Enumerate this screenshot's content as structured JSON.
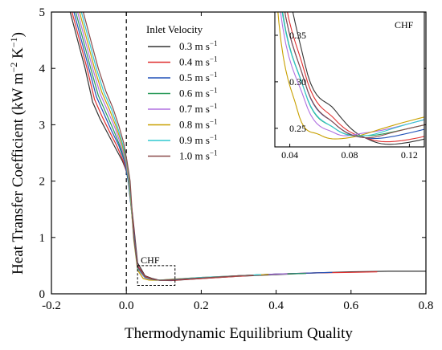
{
  "chart_data": {
    "type": "line",
    "xlabel": "Thermodynamic Equilibrium Quality",
    "ylabel": "Heat Transfer Coefficient (kW m⁻² K⁻¹)",
    "ylabel_parts": {
      "base": "Heat Transfer Coefficient (kW m",
      "sup1": "−2",
      "mid": " K",
      "sup2": "−1",
      "end": ")"
    },
    "xlim": [
      -0.2,
      0.8
    ],
    "ylim": [
      0,
      5
    ],
    "xticks": [
      "-0.2",
      "0.0",
      "0.2",
      "0.4",
      "0.6",
      "0.8"
    ],
    "yticks": [
      "0",
      "1",
      "2",
      "3",
      "4",
      "5"
    ],
    "legend_title": "Inlet Velocity",
    "legend_position": "top-center",
    "reference_line_x": 0.0,
    "annotation": "CHF",
    "series": [
      {
        "name": "0.3 m s",
        "unit_sup": "−1",
        "color": "#333333",
        "points": [
          [
            -0.15,
            5.0
          ],
          [
            -0.13,
            4.5
          ],
          [
            -0.11,
            4.0
          ],
          [
            -0.09,
            3.4
          ],
          [
            -0.07,
            3.1
          ],
          [
            -0.05,
            2.85
          ],
          [
            -0.03,
            2.6
          ],
          [
            -0.01,
            2.35
          ],
          [
            0.005,
            2.1
          ],
          [
            0.02,
            1.2
          ],
          [
            0.03,
            0.55
          ],
          [
            0.05,
            0.32
          ],
          [
            0.07,
            0.27
          ],
          [
            0.09,
            0.24
          ],
          [
            0.12,
            0.235
          ],
          [
            0.2,
            0.27
          ],
          [
            0.3,
            0.31
          ],
          [
            0.4,
            0.34
          ],
          [
            0.5,
            0.37
          ],
          [
            0.6,
            0.39
          ],
          [
            0.7,
            0.4
          ],
          [
            0.8,
            0.4
          ]
        ]
      },
      {
        "name": "0.4 m s",
        "unit_sup": "−1",
        "color": "#e03030",
        "points": [
          [
            -0.145,
            5.0
          ],
          [
            -0.125,
            4.5
          ],
          [
            -0.105,
            4.0
          ],
          [
            -0.085,
            3.45
          ],
          [
            -0.065,
            3.15
          ],
          [
            -0.045,
            2.88
          ],
          [
            -0.025,
            2.62
          ],
          [
            -0.008,
            2.35
          ],
          [
            0.005,
            2.05
          ],
          [
            0.02,
            1.15
          ],
          [
            0.03,
            0.5
          ],
          [
            0.05,
            0.31
          ],
          [
            0.07,
            0.26
          ],
          [
            0.09,
            0.24
          ],
          [
            0.12,
            0.238
          ],
          [
            0.2,
            0.27
          ],
          [
            0.3,
            0.31
          ],
          [
            0.4,
            0.35
          ],
          [
            0.5,
            0.37
          ],
          [
            0.6,
            0.38
          ],
          [
            0.67,
            0.39
          ]
        ]
      },
      {
        "name": "0.5 m s",
        "unit_sup": "−1",
        "color": "#2050b8",
        "points": [
          [
            -0.14,
            5.0
          ],
          [
            -0.12,
            4.5
          ],
          [
            -0.1,
            4.0
          ],
          [
            -0.08,
            3.5
          ],
          [
            -0.06,
            3.2
          ],
          [
            -0.04,
            2.9
          ],
          [
            -0.02,
            2.63
          ],
          [
            -0.005,
            2.35
          ],
          [
            0.005,
            2.0
          ],
          [
            0.02,
            1.1
          ],
          [
            0.03,
            0.48
          ],
          [
            0.05,
            0.3
          ],
          [
            0.07,
            0.255
          ],
          [
            0.09,
            0.24
          ],
          [
            0.12,
            0.245
          ],
          [
            0.2,
            0.28
          ],
          [
            0.3,
            0.32
          ],
          [
            0.4,
            0.35
          ],
          [
            0.5,
            0.37
          ],
          [
            0.55,
            0.38
          ]
        ]
      },
      {
        "name": "0.6 m s",
        "unit_sup": "−1",
        "color": "#2a9a5a",
        "points": [
          [
            -0.135,
            5.0
          ],
          [
            -0.115,
            4.5
          ],
          [
            -0.095,
            4.0
          ],
          [
            -0.075,
            3.52
          ],
          [
            -0.055,
            3.22
          ],
          [
            -0.035,
            2.92
          ],
          [
            -0.018,
            2.64
          ],
          [
            -0.003,
            2.35
          ],
          [
            0.006,
            2.0
          ],
          [
            0.02,
            1.05
          ],
          [
            0.03,
            0.46
          ],
          [
            0.05,
            0.29
          ],
          [
            0.07,
            0.25
          ],
          [
            0.09,
            0.242
          ],
          [
            0.12,
            0.25
          ],
          [
            0.2,
            0.28
          ],
          [
            0.3,
            0.32
          ],
          [
            0.4,
            0.35
          ],
          [
            0.48,
            0.36
          ]
        ]
      },
      {
        "name": "0.7 m s",
        "unit_sup": "−1",
        "color": "#b070e0",
        "points": [
          [
            -0.13,
            5.0
          ],
          [
            -0.11,
            4.5
          ],
          [
            -0.09,
            4.0
          ],
          [
            -0.07,
            3.55
          ],
          [
            -0.05,
            3.25
          ],
          [
            -0.03,
            2.94
          ],
          [
            -0.015,
            2.65
          ],
          [
            -0.002,
            2.35
          ],
          [
            0.007,
            2.0
          ],
          [
            0.02,
            1.0
          ],
          [
            0.03,
            0.44
          ],
          [
            0.05,
            0.28
          ],
          [
            0.07,
            0.245
          ],
          [
            0.09,
            0.245
          ],
          [
            0.12,
            0.255
          ],
          [
            0.2,
            0.29
          ],
          [
            0.3,
            0.32
          ],
          [
            0.4,
            0.35
          ],
          [
            0.43,
            0.355
          ]
        ]
      },
      {
        "name": "0.8 m s",
        "unit_sup": "−1",
        "color": "#c8a000",
        "points": [
          [
            -0.125,
            5.0
          ],
          [
            -0.105,
            4.5
          ],
          [
            -0.085,
            4.0
          ],
          [
            -0.065,
            3.57
          ],
          [
            -0.045,
            3.27
          ],
          [
            -0.027,
            2.96
          ],
          [
            -0.012,
            2.66
          ],
          [
            0.0,
            2.35
          ],
          [
            0.008,
            2.0
          ],
          [
            0.02,
            0.95
          ],
          [
            0.03,
            0.42
          ],
          [
            0.045,
            0.27
          ],
          [
            0.06,
            0.243
          ],
          [
            0.08,
            0.24
          ],
          [
            0.12,
            0.258
          ],
          [
            0.2,
            0.29
          ],
          [
            0.3,
            0.32
          ],
          [
            0.38,
            0.345
          ]
        ]
      },
      {
        "name": "0.9 m s",
        "unit_sup": "−1",
        "color": "#30c8d0",
        "points": [
          [
            -0.12,
            5.0
          ],
          [
            -0.1,
            4.5
          ],
          [
            -0.08,
            4.0
          ],
          [
            -0.06,
            3.58
          ],
          [
            -0.04,
            3.28
          ],
          [
            -0.024,
            2.97
          ],
          [
            -0.01,
            2.67
          ],
          [
            0.001,
            2.35
          ],
          [
            0.009,
            2.0
          ],
          [
            0.02,
            0.98
          ],
          [
            0.03,
            0.45
          ],
          [
            0.05,
            0.29
          ],
          [
            0.07,
            0.25
          ],
          [
            0.09,
            0.242
          ],
          [
            0.12,
            0.255
          ],
          [
            0.2,
            0.29
          ],
          [
            0.3,
            0.32
          ],
          [
            0.36,
            0.34
          ]
        ]
      },
      {
        "name": "1.0 m s",
        "unit_sup": "−1",
        "color": "#8a4a4a",
        "points": [
          [
            -0.115,
            5.0
          ],
          [
            -0.095,
            4.5
          ],
          [
            -0.075,
            4.0
          ],
          [
            -0.055,
            3.6
          ],
          [
            -0.036,
            3.3
          ],
          [
            -0.02,
            2.98
          ],
          [
            -0.007,
            2.68
          ],
          [
            0.002,
            2.35
          ],
          [
            0.01,
            2.0
          ],
          [
            0.02,
            1.0
          ],
          [
            0.03,
            0.47
          ],
          [
            0.05,
            0.3
          ],
          [
            0.07,
            0.255
          ],
          [
            0.09,
            0.24
          ],
          [
            0.12,
            0.25
          ],
          [
            0.2,
            0.28
          ],
          [
            0.3,
            0.32
          ],
          [
            0.34,
            0.33
          ]
        ]
      }
    ],
    "inset": {
      "annotation": "CHF",
      "xlim": [
        0.03,
        0.13
      ],
      "ylim": [
        0.23,
        0.375
      ],
      "xticks": [
        "0.04",
        "0.08",
        "0.12"
      ],
      "yticks": [
        "0.25",
        "0.30",
        "0.35"
      ],
      "zoom_region": {
        "x": [
          0.03,
          0.13
        ],
        "y": [
          0.15,
          0.5
        ]
      }
    }
  }
}
